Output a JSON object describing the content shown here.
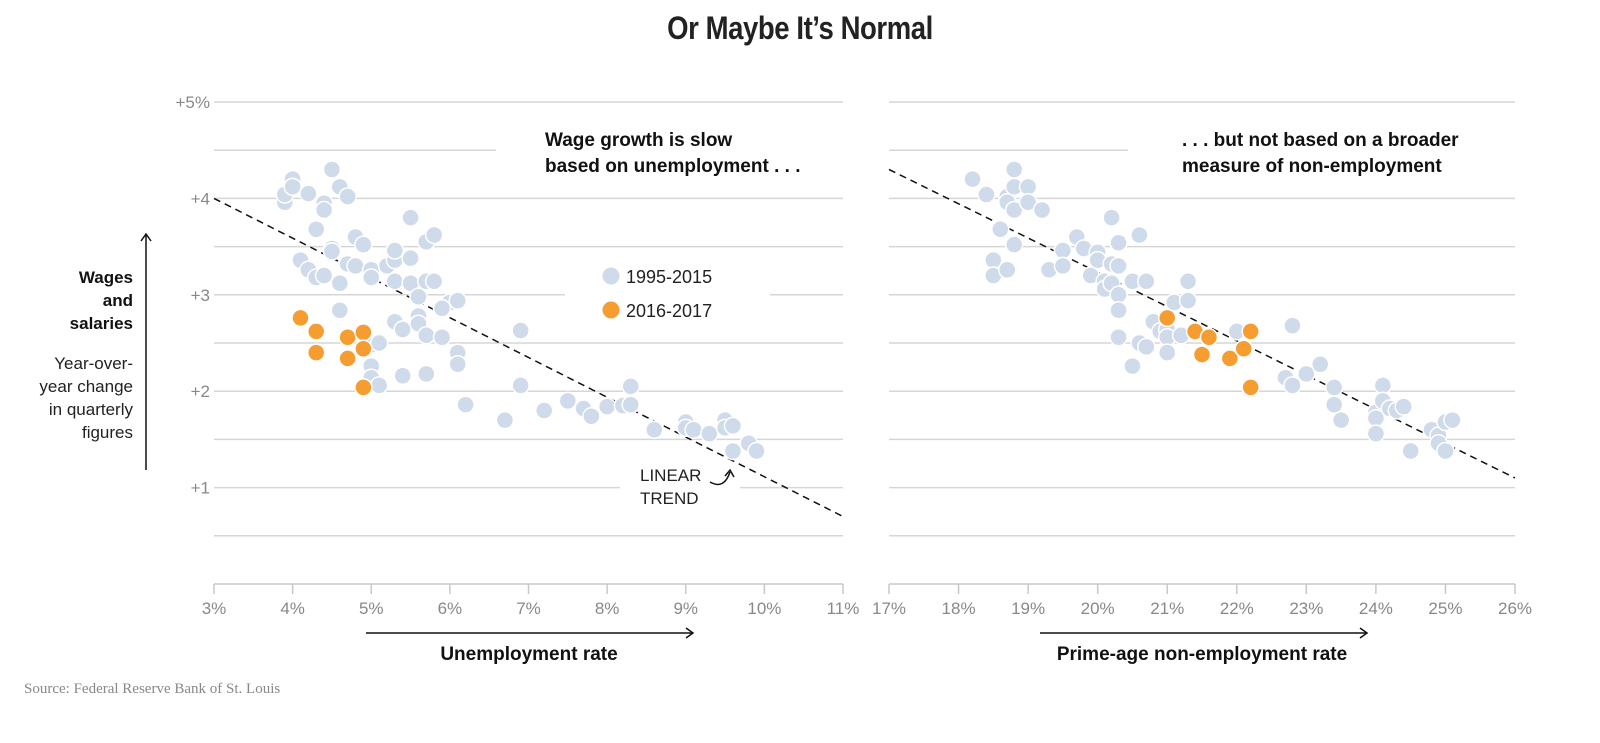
{
  "title": "Or Maybe It’s Normal",
  "source": "Source: Federal Reserve Bank of St. Louis",
  "y_axis": {
    "label_bold": [
      "Wages",
      "and",
      "salaries"
    ],
    "label_regular": [
      "Year-over-",
      "year change",
      "in quarterly",
      "figures"
    ]
  },
  "legend": [
    {
      "label": "1995-2015",
      "color": "#cfdaea"
    },
    {
      "label": "2016-2017",
      "color": "#f59d31"
    }
  ],
  "trend_label": [
    "LINEAR",
    "TREND"
  ],
  "colors": {
    "past": "#cfdaea",
    "recent": "#f59d31",
    "grid": "#d6d6d6",
    "trend": "#111111"
  },
  "chart_data": [
    {
      "type": "scatter",
      "title": "Wage growth is slow based on unemployment . . .",
      "annotation": [
        "Wage growth is slow",
        "based on unemployment . . ."
      ],
      "xlabel": "Unemployment rate",
      "ylabel": "Wages and salaries: year-over-year change in quarterly figures",
      "xlim": [
        3,
        11
      ],
      "ylim": [
        0,
        5
      ],
      "x_ticks": [
        "3%",
        "4%",
        "5%",
        "6%",
        "7%",
        "8%",
        "9%",
        "10%",
        "11%"
      ],
      "x_tick_values": [
        3,
        4,
        5,
        6,
        7,
        8,
        9,
        10,
        11
      ],
      "y_ticks": [
        "+1",
        "+2",
        "+3",
        "+4",
        "+5%"
      ],
      "y_tick_values": [
        1,
        2,
        3,
        4,
        5
      ],
      "grid": true,
      "trend": {
        "x": [
          3,
          11
        ],
        "y": [
          4.0,
          0.7
        ]
      },
      "series": [
        {
          "name": "1995-2015",
          "points": [
            [
              3.9,
              3.96
            ],
            [
              3.9,
              4.04
            ],
            [
              4.0,
              4.2
            ],
            [
              4.0,
              4.12
            ],
            [
              4.2,
              4.05
            ],
            [
              4.4,
              3.95
            ],
            [
              4.4,
              3.88
            ],
            [
              4.5,
              4.3
            ],
            [
              4.6,
              4.12
            ],
            [
              4.7,
              4.02
            ],
            [
              4.3,
              3.68
            ],
            [
              4.5,
              3.48
            ],
            [
              4.5,
              3.45
            ],
            [
              4.8,
              3.6
            ],
            [
              4.9,
              3.52
            ],
            [
              4.1,
              3.36
            ],
            [
              4.2,
              3.26
            ],
            [
              4.3,
              3.18
            ],
            [
              4.4,
              3.2
            ],
            [
              4.6,
              3.12
            ],
            [
              4.7,
              3.32
            ],
            [
              4.8,
              3.3
            ],
            [
              5.0,
              3.26
            ],
            [
              5.0,
              3.18
            ],
            [
              5.2,
              3.3
            ],
            [
              5.3,
              3.36
            ],
            [
              5.3,
              3.46
            ],
            [
              5.5,
              3.8
            ],
            [
              5.5,
              3.38
            ],
            [
              5.7,
              3.55
            ],
            [
              5.8,
              3.62
            ],
            [
              5.3,
              3.14
            ],
            [
              5.5,
              3.12
            ],
            [
              5.7,
              3.14
            ],
            [
              5.8,
              3.14
            ],
            [
              5.6,
              2.98
            ],
            [
              6.0,
              2.92
            ],
            [
              6.1,
              2.94
            ],
            [
              5.9,
              2.86
            ],
            [
              4.6,
              2.84
            ],
            [
              5.3,
              2.72
            ],
            [
              5.4,
              2.64
            ],
            [
              5.6,
              2.78
            ],
            [
              5.6,
              2.7
            ],
            [
              5.7,
              2.58
            ],
            [
              5.9,
              2.56
            ],
            [
              6.9,
              2.63
            ],
            [
              5.0,
              2.48
            ],
            [
              5.1,
              2.5
            ],
            [
              5.0,
              2.26
            ],
            [
              5.0,
              2.14
            ],
            [
              5.1,
              2.06
            ],
            [
              5.4,
              2.16
            ],
            [
              5.7,
              2.18
            ],
            [
              6.1,
              2.4
            ],
            [
              6.1,
              2.28
            ],
            [
              6.9,
              2.06
            ],
            [
              6.2,
              1.86
            ],
            [
              6.7,
              1.7
            ],
            [
              7.2,
              1.8
            ],
            [
              7.5,
              1.9
            ],
            [
              7.7,
              1.82
            ],
            [
              7.8,
              1.74
            ],
            [
              8.0,
              1.84
            ],
            [
              8.2,
              1.85
            ],
            [
              8.3,
              1.86
            ],
            [
              8.3,
              2.05
            ],
            [
              8.6,
              1.6
            ],
            [
              9.0,
              1.68
            ],
            [
              9.0,
              1.62
            ],
            [
              9.1,
              1.6
            ],
            [
              9.3,
              1.56
            ],
            [
              9.5,
              1.7
            ],
            [
              9.5,
              1.62
            ],
            [
              9.6,
              1.64
            ],
            [
              9.6,
              1.38
            ],
            [
              9.8,
              1.46
            ],
            [
              9.9,
              1.38
            ]
          ]
        },
        {
          "name": "2016-2017",
          "points": [
            [
              4.1,
              2.76
            ],
            [
              4.3,
              2.62
            ],
            [
              4.3,
              2.4
            ],
            [
              4.7,
              2.56
            ],
            [
              4.7,
              2.34
            ],
            [
              4.9,
              2.61
            ],
            [
              4.9,
              2.44
            ],
            [
              4.9,
              2.04
            ]
          ]
        }
      ]
    },
    {
      "type": "scatter",
      "title": ". . . but not based on a broader measure of non-employment",
      "annotation": [
        ". . . but not based on a broader",
        "measure of non-employment"
      ],
      "xlabel": "Prime-age non-employment rate",
      "ylabel": "Wages and salaries: year-over-year change in quarterly figures",
      "xlim": [
        17,
        26
      ],
      "ylim": [
        0,
        5
      ],
      "x_ticks": [
        "17%",
        "18%",
        "19%",
        "20%",
        "21%",
        "22%",
        "23%",
        "24%",
        "25%",
        "26%"
      ],
      "x_tick_values": [
        17,
        18,
        19,
        20,
        21,
        22,
        23,
        24,
        25,
        26
      ],
      "y_ticks": [
        "+1",
        "+2",
        "+3",
        "+4",
        "+5%"
      ],
      "y_tick_values": [
        1,
        2,
        3,
        4,
        5
      ],
      "grid": true,
      "trend": {
        "x": [
          17,
          26
        ],
        "y": [
          4.3,
          1.1
        ]
      },
      "series": [
        {
          "name": "1995-2015",
          "points": [
            [
              18.2,
              4.2
            ],
            [
              18.4,
              4.04
            ],
            [
              18.7,
              4.02
            ],
            [
              18.7,
              3.96
            ],
            [
              18.8,
              4.3
            ],
            [
              18.8,
              4.12
            ],
            [
              18.8,
              3.88
            ],
            [
              19.0,
              4.12
            ],
            [
              19.0,
              3.96
            ],
            [
              19.2,
              3.88
            ],
            [
              18.6,
              3.68
            ],
            [
              18.8,
              3.52
            ],
            [
              18.5,
              3.36
            ],
            [
              18.5,
              3.2
            ],
            [
              18.7,
              3.26
            ],
            [
              19.3,
              3.26
            ],
            [
              19.5,
              3.46
            ],
            [
              19.5,
              3.3
            ],
            [
              19.7,
              3.6
            ],
            [
              19.8,
              3.48
            ],
            [
              19.9,
              3.2
            ],
            [
              20.0,
              3.44
            ],
            [
              20.0,
              3.36
            ],
            [
              20.1,
              3.14
            ],
            [
              20.1,
              3.06
            ],
            [
              20.2,
              3.8
            ],
            [
              20.2,
              3.32
            ],
            [
              20.2,
              3.12
            ],
            [
              20.3,
              3.54
            ],
            [
              20.3,
              3.3
            ],
            [
              20.3,
              3.0
            ],
            [
              20.5,
              3.14
            ],
            [
              20.6,
              3.62
            ],
            [
              20.7,
              3.14
            ],
            [
              20.3,
              2.84
            ],
            [
              20.3,
              2.56
            ],
            [
              20.5,
              2.26
            ],
            [
              20.6,
              2.5
            ],
            [
              20.7,
              2.46
            ],
            [
              20.8,
              2.72
            ],
            [
              20.9,
              2.62
            ],
            [
              21.0,
              2.64
            ],
            [
              21.0,
              2.56
            ],
            [
              21.0,
              2.4
            ],
            [
              21.1,
              2.92
            ],
            [
              21.3,
              2.94
            ],
            [
              21.3,
              3.14
            ],
            [
              21.2,
              2.58
            ],
            [
              22.0,
              2.62
            ],
            [
              22.8,
              2.68
            ],
            [
              22.7,
              2.14
            ],
            [
              22.8,
              2.06
            ],
            [
              23.0,
              2.18
            ],
            [
              23.2,
              2.28
            ],
            [
              23.4,
              2.04
            ],
            [
              23.4,
              1.86
            ],
            [
              23.5,
              1.7
            ],
            [
              24.0,
              1.78
            ],
            [
              24.0,
              1.72
            ],
            [
              24.0,
              1.56
            ],
            [
              24.1,
              2.06
            ],
            [
              24.1,
              1.9
            ],
            [
              24.2,
              1.82
            ],
            [
              24.3,
              1.8
            ],
            [
              24.4,
              1.84
            ],
            [
              24.5,
              1.38
            ],
            [
              24.8,
              1.6
            ],
            [
              24.9,
              1.54
            ],
            [
              24.9,
              1.46
            ],
            [
              25.0,
              1.68
            ],
            [
              25.0,
              1.38
            ],
            [
              25.1,
              1.7
            ]
          ]
        },
        {
          "name": "2016-2017",
          "points": [
            [
              21.0,
              2.76
            ],
            [
              21.4,
              2.62
            ],
            [
              21.5,
              2.38
            ],
            [
              21.6,
              2.56
            ],
            [
              21.9,
              2.34
            ],
            [
              22.1,
              2.44
            ],
            [
              22.2,
              2.62
            ],
            [
              22.2,
              2.04
            ]
          ]
        }
      ]
    }
  ]
}
